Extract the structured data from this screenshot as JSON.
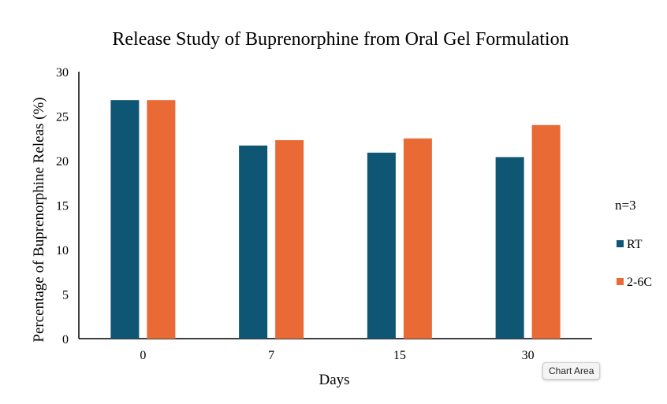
{
  "chart_data": {
    "type": "bar",
    "title": "Release Study of Buprenorphine from Oral Gel Formulation",
    "xlabel": "Days",
    "ylabel": "Percentage of Buprenorphine Releas (%)",
    "categories": [
      "0",
      "7",
      "15",
      "30"
    ],
    "series": [
      {
        "name": "RT",
        "color": "#0f5574",
        "values": [
          26.8,
          21.7,
          20.9,
          20.4
        ]
      },
      {
        "name": "2-6C",
        "color": "#e96a35",
        "values": [
          26.8,
          22.3,
          22.5,
          24.0
        ]
      }
    ],
    "ylim": [
      0,
      30
    ],
    "yticks": [
      0,
      5,
      10,
      15,
      20,
      25,
      30
    ],
    "grid": false,
    "legend": {
      "title": "n=3",
      "position": "right"
    }
  },
  "tooltip": {
    "label": "Chart Area"
  }
}
